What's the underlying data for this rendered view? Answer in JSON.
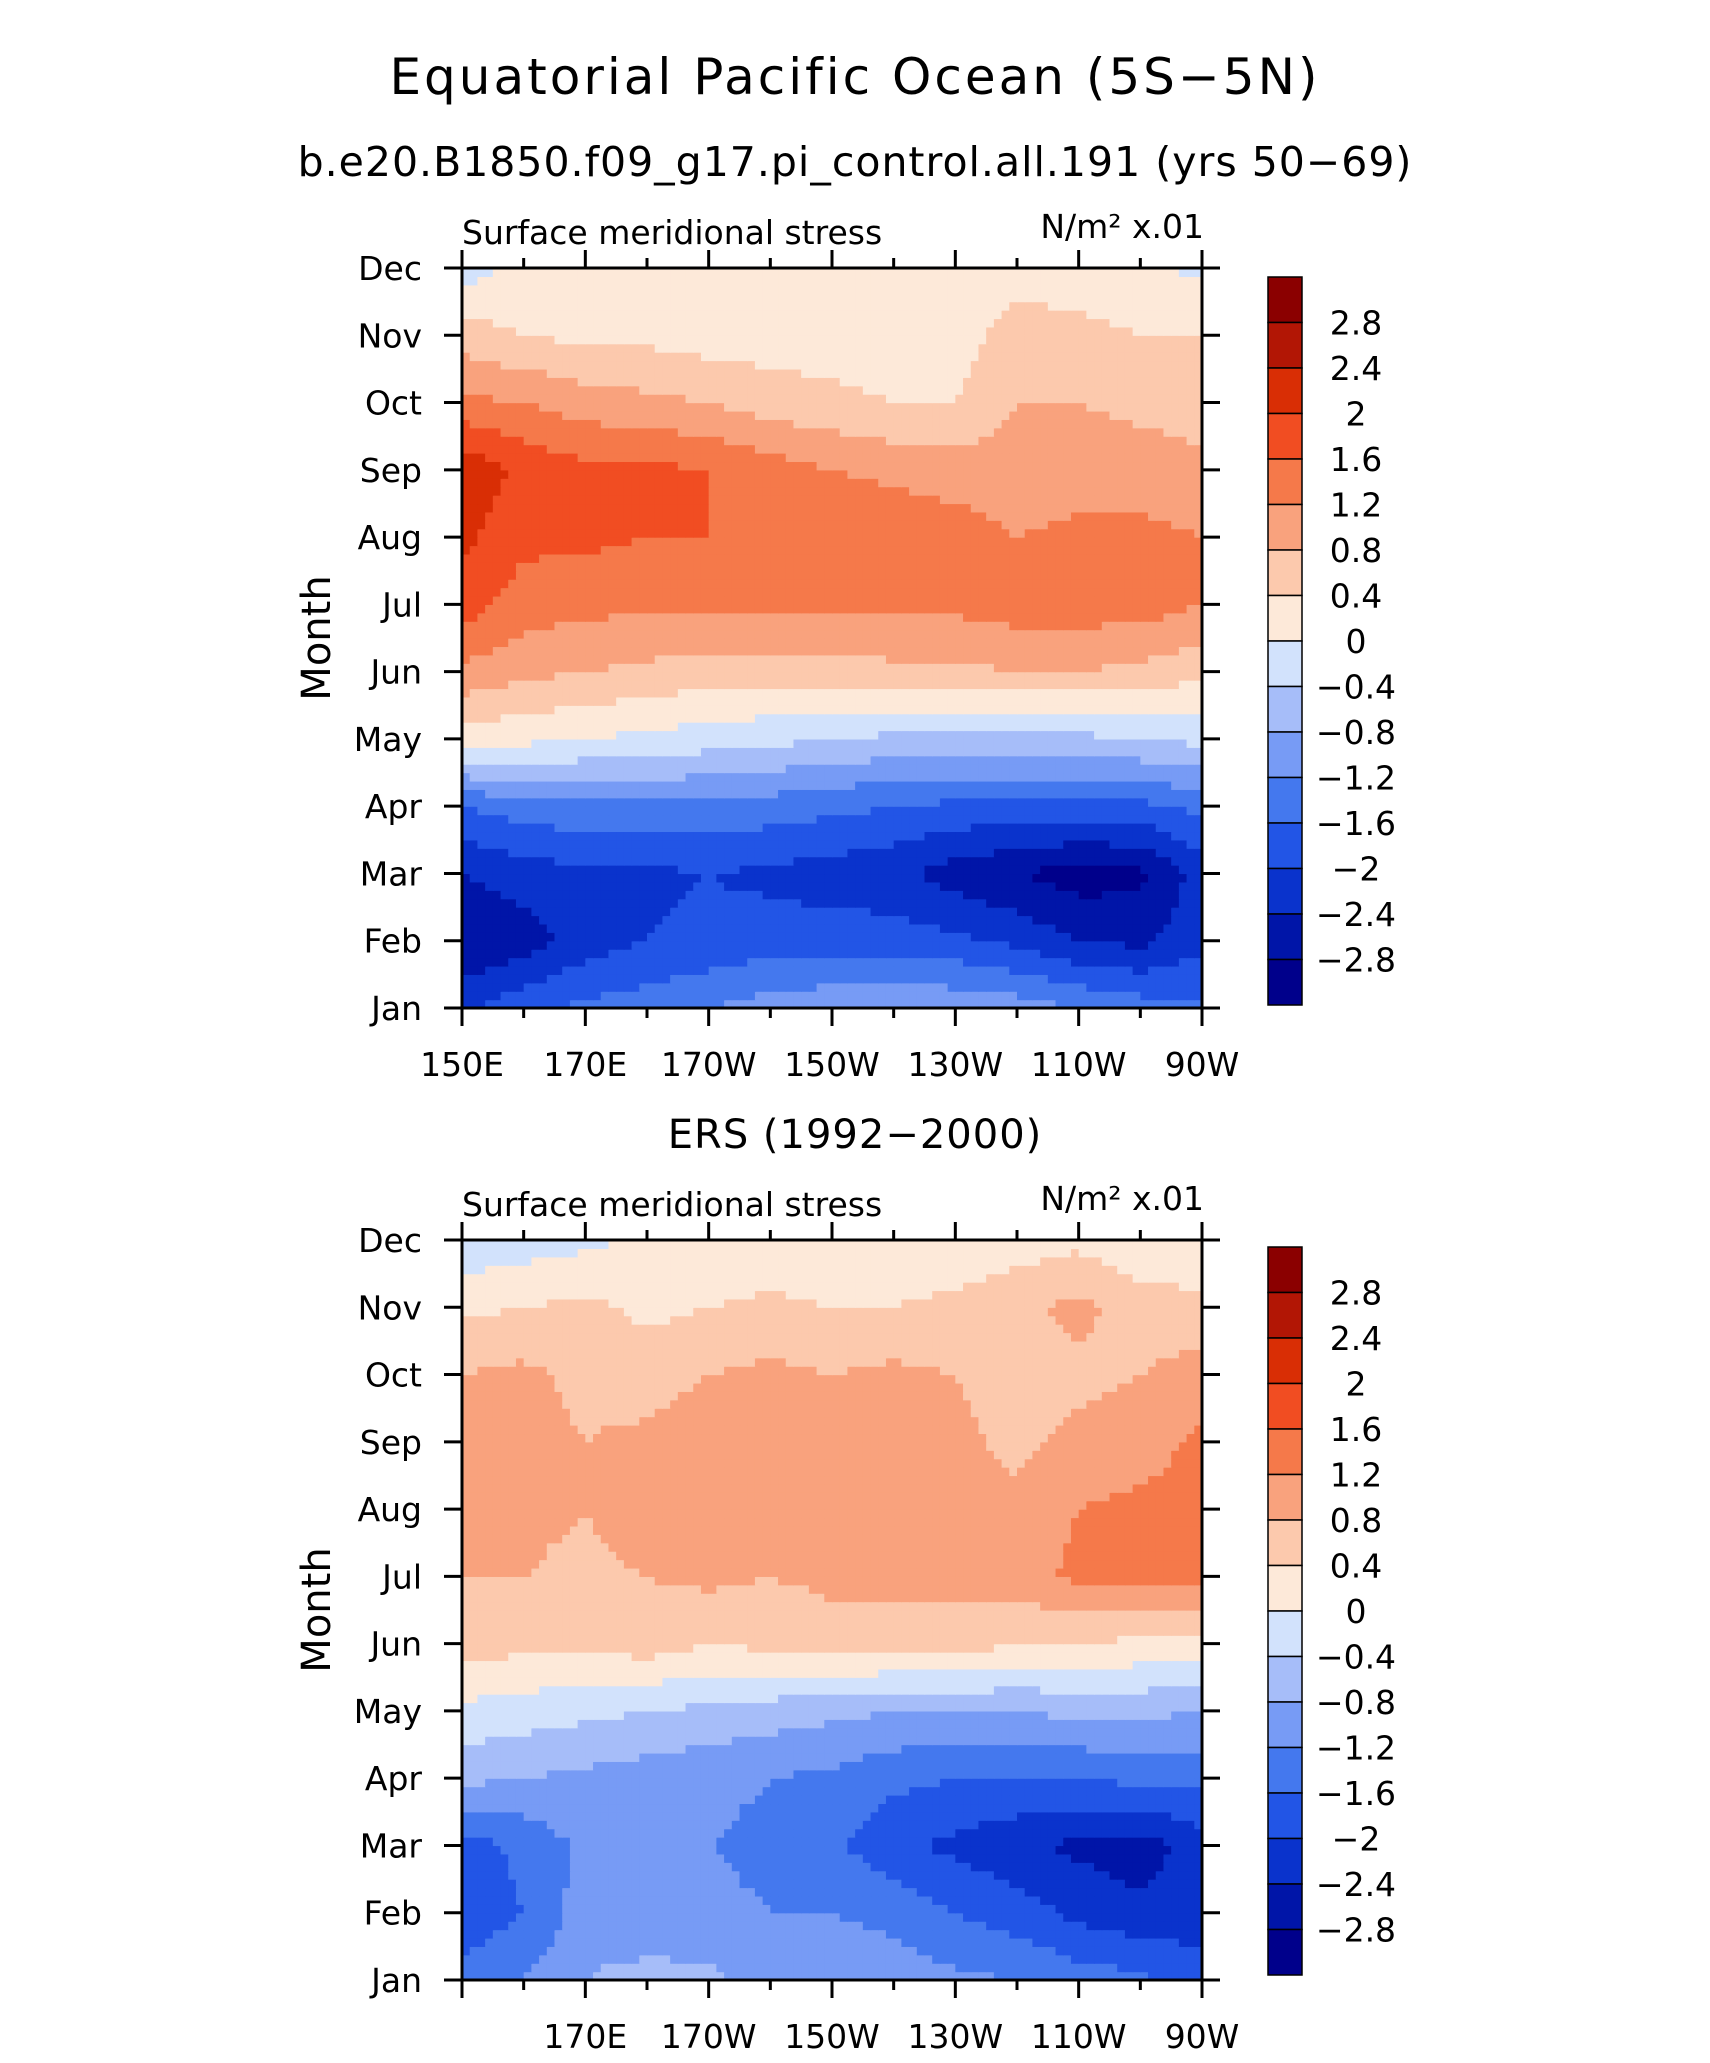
{
  "title": "Equatorial Pacific Ocean (5S−5N)",
  "colors": {
    "levels": [
      "#00008b",
      "#0015a8",
      "#0a33cc",
      "#2255e6",
      "#4478ee",
      "#779bf5",
      "#a6bdf9",
      "#d2e2fc",
      "#fde9d9",
      "#fcc9ad",
      "#f9a27d",
      "#f5794a",
      "#f14d22",
      "#d92e05",
      "#b21605",
      "#8b0000"
    ]
  },
  "chart_data": [
    {
      "type": "heatmap",
      "title": "b.e20.B1850.f09_g17.pi_control.all.191 (yrs 50−69)",
      "variable": "Surface meridional stress",
      "units": "N/m² x.01",
      "ylabel": "Month",
      "xlabel": "",
      "x_axis": {
        "range": [
          150,
          270
        ],
        "tick_values": [
          150,
          170,
          190,
          210,
          230,
          250,
          270
        ],
        "tick_labels": [
          "150E",
          "170E",
          "170W",
          "150W",
          "130W",
          "110W",
          "90W"
        ]
      },
      "y_axis": {
        "range": [
          0,
          11
        ],
        "tick_labels": [
          "Jan",
          "Feb",
          "Mar",
          "Apr",
          "May",
          "Jun",
          "Jul",
          "Aug",
          "Sep",
          "Oct",
          "Nov",
          "Dec"
        ]
      },
      "colorbar": {
        "labels": [
          "2.8",
          "2.4",
          "2",
          "1.6",
          "1.2",
          "0.8",
          "0.4",
          "0",
          "−0.4",
          "−0.8",
          "−1.2",
          "−1.6",
          "−2",
          "−2.4",
          "−2.8"
        ],
        "levels": [
          -2.8,
          -2.4,
          -2,
          -1.6,
          -1.2,
          -0.8,
          -0.4,
          0,
          0.4,
          0.8,
          1.2,
          1.6,
          2,
          2.4,
          2.8
        ]
      },
      "lon": [
        150,
        160,
        170,
        180,
        190,
        200,
        210,
        220,
        230,
        240,
        250,
        260,
        270
      ],
      "values": [
        [
          -2.1,
          -1.7,
          -1.5,
          -1.4,
          -1.2,
          -1.0,
          -0.9,
          -0.8,
          -0.9,
          -1.0,
          -1.2,
          -1.4,
          -1.5
        ],
        [
          -2.8,
          -2.6,
          -2.2,
          -2.0,
          -1.9,
          -1.8,
          -1.8,
          -1.8,
          -1.9,
          -2.1,
          -2.4,
          -2.5,
          -2.1
        ],
        [
          -2.4,
          -2.2,
          -2.1,
          -2.1,
          -2.0,
          -2.1,
          -2.2,
          -2.3,
          -2.6,
          -2.8,
          -3.0,
          -2.9,
          -2.2
        ],
        [
          -1.6,
          -1.4,
          -1.3,
          -1.3,
          -1.3,
          -1.4,
          -1.5,
          -1.6,
          -1.7,
          -1.7,
          -1.7,
          -1.7,
          -1.5
        ],
        [
          0.2,
          0.1,
          0.0,
          -0.1,
          -0.2,
          -0.3,
          -0.4,
          -0.5,
          -0.5,
          -0.5,
          -0.5,
          -0.4,
          -0.3
        ],
        [
          1.1,
          0.9,
          0.8,
          0.7,
          0.6,
          0.6,
          0.6,
          0.7,
          0.7,
          0.8,
          0.8,
          0.7,
          0.5
        ],
        [
          1.8,
          1.4,
          1.3,
          1.3,
          1.3,
          1.3,
          1.3,
          1.3,
          1.3,
          1.4,
          1.4,
          1.4,
          1.2
        ],
        [
          2.1,
          1.7,
          1.7,
          1.6,
          1.6,
          1.6,
          1.5,
          1.5,
          1.4,
          1.2,
          1.3,
          1.3,
          1.2
        ],
        [
          2.3,
          1.9,
          1.7,
          1.7,
          1.6,
          1.4,
          1.2,
          1.1,
          1.0,
          1.0,
          1.0,
          1.0,
          0.9
        ],
        [
          1.3,
          1.2,
          1.0,
          0.9,
          0.8,
          0.6,
          0.5,
          0.4,
          0.4,
          0.8,
          0.8,
          0.7,
          0.6
        ],
        [
          0.6,
          0.4,
          0.3,
          0.3,
          0.2,
          0.2,
          0.2,
          0.2,
          0.2,
          0.6,
          0.5,
          0.4,
          0.4
        ],
        [
          -0.2,
          0.1,
          0.1,
          0.0,
          0.0,
          0.0,
          0.0,
          0.0,
          0.1,
          0.2,
          0.2,
          0.1,
          -0.1
        ]
      ]
    },
    {
      "type": "heatmap",
      "title": "ERS (1992−2000)",
      "variable": "Surface meridional stress",
      "units": "N/m² x.01",
      "ylabel": "Month",
      "xlabel": "",
      "x_axis": {
        "range": [
          150,
          270
        ],
        "tick_values": [
          150,
          170,
          190,
          210,
          230,
          250,
          270
        ],
        "tick_labels": [
          "",
          "170E",
          "170W",
          "150W",
          "130W",
          "110W",
          "90W"
        ]
      },
      "y_axis": {
        "range": [
          0,
          11
        ],
        "tick_labels": [
          "Jan",
          "Feb",
          "Mar",
          "Apr",
          "May",
          "Jun",
          "Jul",
          "Aug",
          "Sep",
          "Oct",
          "Nov",
          "Dec"
        ]
      },
      "colorbar": {
        "labels": [
          "2.8",
          "2.4",
          "2",
          "1.6",
          "1.2",
          "0.8",
          "0.4",
          "0",
          "−0.4",
          "−0.8",
          "−1.2",
          "−1.6",
          "−2",
          "−2.4",
          "−2.8"
        ],
        "levels": [
          -2.8,
          -2.4,
          -2,
          -1.6,
          -1.2,
          -0.8,
          -0.4,
          0,
          0.4,
          0.8,
          1.2,
          1.6,
          2,
          2.4,
          2.8
        ]
      },
      "lon": [
        150,
        160,
        170,
        180,
        190,
        200,
        210,
        220,
        230,
        240,
        250,
        260,
        270
      ],
      "values": [
        [
          -1.4,
          -1.2,
          -0.8,
          -0.6,
          -0.7,
          -1.0,
          -1.0,
          -1.0,
          -1.1,
          -1.2,
          -1.4,
          -1.5,
          -1.8
        ],
        [
          -1.9,
          -1.6,
          -1.0,
          -1.2,
          -1.1,
          -1.2,
          -1.2,
          -1.3,
          -1.6,
          -1.8,
          -2.1,
          -2.3,
          -2.2
        ],
        [
          -1.8,
          -1.5,
          -1.1,
          -1.0,
          -1.2,
          -1.3,
          -1.5,
          -1.9,
          -2.1,
          -2.3,
          -2.5,
          -2.6,
          -2.2
        ],
        [
          -0.7,
          -0.8,
          -0.9,
          -1.0,
          -1.1,
          -1.2,
          -1.3,
          -1.5,
          -1.6,
          -1.6,
          -1.6,
          -1.5,
          -1.5
        ],
        [
          -0.1,
          -0.2,
          -0.3,
          -0.4,
          -0.5,
          -0.6,
          -0.7,
          -0.8,
          -0.8,
          -0.8,
          -0.7,
          -0.7,
          -0.8
        ],
        [
          0.6,
          0.5,
          0.5,
          0.6,
          0.4,
          0.5,
          0.6,
          0.6,
          0.6,
          0.4,
          0.4,
          0.3,
          0.3
        ],
        [
          0.8,
          0.8,
          0.7,
          0.8,
          0.9,
          0.8,
          0.9,
          0.9,
          0.9,
          1.0,
          1.3,
          1.4,
          1.3
        ],
        [
          0.9,
          0.9,
          0.8,
          1.0,
          1.0,
          1.1,
          1.0,
          1.0,
          1.0,
          0.9,
          1.2,
          1.3,
          1.4
        ],
        [
          1.2,
          0.9,
          0.8,
          0.9,
          1.1,
          1.2,
          0.9,
          1.0,
          0.9,
          0.7,
          0.9,
          1.0,
          1.3
        ],
        [
          0.8,
          0.9,
          0.7,
          0.6,
          0.8,
          0.9,
          0.8,
          0.9,
          0.8,
          0.6,
          0.7,
          0.8,
          1.0
        ],
        [
          0.3,
          0.4,
          0.5,
          0.3,
          0.4,
          0.5,
          0.4,
          0.4,
          0.5,
          0.7,
          0.9,
          0.6,
          0.5
        ],
        [
          -0.3,
          -0.2,
          -0.1,
          0.1,
          0.0,
          0.1,
          0.1,
          0.2,
          0.1,
          0.2,
          0.3,
          0.1,
          0.1
        ]
      ]
    }
  ]
}
